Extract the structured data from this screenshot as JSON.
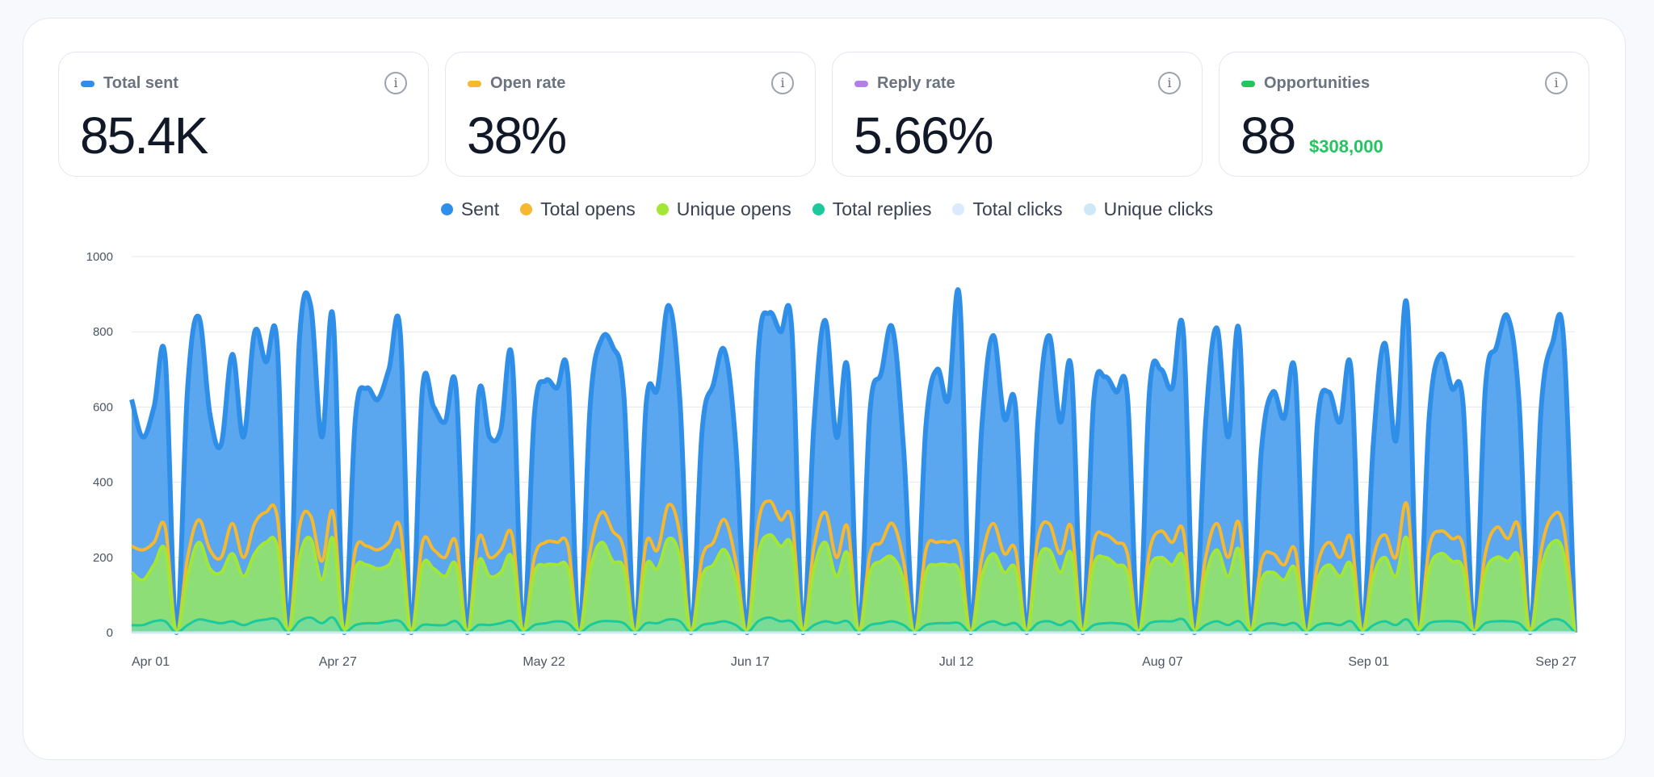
{
  "stats": [
    {
      "label": "Total sent",
      "value": "85.4K",
      "subvalue": "",
      "color": "#2f8fe8"
    },
    {
      "label": "Open rate",
      "value": "38%",
      "subvalue": "",
      "color": "#f5b82e"
    },
    {
      "label": "Reply rate",
      "value": "5.66%",
      "subvalue": "",
      "color": "#b37fe6"
    },
    {
      "label": "Opportunities",
      "value": "88",
      "subvalue": "$308,000",
      "color": "#22c55e"
    }
  ],
  "info_glyph": "i",
  "chart_data": {
    "type": "area",
    "title": "",
    "xlabel": "",
    "ylabel": "",
    "ylim": [
      0,
      1000
    ],
    "yticks": [
      "0",
      "200",
      "400",
      "600",
      "800",
      "1000"
    ],
    "x_tick_labels": [
      "Apr 01",
      "Apr 27",
      "May 22",
      "Jun 17",
      "Jul 12",
      "Aug 07",
      "Sep 01",
      "Sep 27"
    ],
    "grid": true,
    "legend_position": "top-center",
    "x": [
      "Apr 01",
      "Apr 02",
      "Apr 03",
      "Apr 04",
      "Apr 05",
      "Apr 08",
      "Apr 09",
      "Apr 10",
      "Apr 11",
      "Apr 12",
      "Apr 15",
      "Apr 16",
      "Apr 17",
      "Apr 18",
      "Apr 19",
      "Apr 22",
      "Apr 23",
      "Apr 24",
      "Apr 25",
      "Apr 26",
      "Apr 29",
      "Apr 30",
      "May 01",
      "May 02",
      "May 03",
      "May 06",
      "May 07",
      "May 08",
      "May 09",
      "May 10",
      "May 13",
      "May 14",
      "May 15",
      "May 16",
      "May 17",
      "May 20",
      "May 21",
      "May 22",
      "May 23",
      "May 24",
      "May 27",
      "May 28",
      "May 29",
      "May 30",
      "May 31",
      "Jun 03",
      "Jun 04",
      "Jun 05",
      "Jun 06",
      "Jun 07",
      "Jun 10",
      "Jun 11",
      "Jun 12",
      "Jun 13",
      "Jun 14",
      "Jun 17",
      "Jun 18",
      "Jun 19",
      "Jun 20",
      "Jun 21",
      "Jun 24",
      "Jun 25",
      "Jun 26",
      "Jun 27",
      "Jun 28",
      "Jul 01",
      "Jul 02",
      "Jul 03",
      "Jul 04",
      "Jul 05",
      "Jul 08",
      "Jul 09",
      "Jul 10",
      "Jul 11",
      "Jul 12",
      "Jul 15",
      "Jul 16",
      "Jul 17",
      "Jul 18",
      "Jul 19",
      "Jul 22",
      "Jul 23",
      "Jul 24",
      "Jul 25",
      "Jul 26",
      "Jul 29",
      "Jul 30",
      "Jul 31",
      "Aug 01",
      "Aug 02",
      "Aug 05",
      "Aug 06",
      "Aug 07",
      "Aug 08",
      "Aug 09",
      "Aug 12",
      "Aug 13",
      "Aug 14",
      "Aug 15",
      "Aug 16",
      "Aug 19",
      "Aug 20",
      "Aug 21",
      "Aug 22",
      "Aug 23",
      "Aug 26",
      "Aug 27",
      "Aug 28",
      "Aug 29",
      "Aug 30",
      "Sep 02",
      "Sep 03",
      "Sep 04",
      "Sep 05",
      "Sep 06",
      "Sep 09",
      "Sep 10",
      "Sep 11",
      "Sep 12",
      "Sep 13",
      "Sep 16",
      "Sep 17",
      "Sep 18",
      "Sep 19",
      "Sep 20",
      "Sep 23",
      "Sep 24",
      "Sep 25",
      "Sep 26",
      "Sep 27"
    ],
    "series": [
      {
        "name": "Sent",
        "color": "#2f8fe8",
        "values": [
          620,
          520,
          600,
          730,
          0,
          650,
          840,
          580,
          500,
          740,
          520,
          800,
          720,
          770,
          0,
          780,
          870,
          520,
          840,
          0,
          570,
          650,
          620,
          700,
          800,
          0,
          650,
          600,
          560,
          650,
          0,
          630,
          520,
          540,
          730,
          0,
          580,
          670,
          650,
          680,
          0,
          610,
          780,
          760,
          630,
          0,
          610,
          650,
          870,
          620,
          0,
          540,
          660,
          750,
          500,
          0,
          740,
          850,
          800,
          810,
          0,
          560,
          830,
          520,
          700,
          0,
          590,
          690,
          810,
          490,
          0,
          550,
          700,
          620,
          890,
          0,
          550,
          790,
          570,
          600,
          0,
          560,
          790,
          560,
          700,
          0,
          620,
          680,
          640,
          630,
          0,
          650,
          700,
          650,
          800,
          0,
          560,
          810,
          520,
          800,
          0,
          490,
          640,
          570,
          690,
          0,
          560,
          640,
          560,
          700,
          0,
          510,
          770,
          510,
          870,
          0,
          580,
          740,
          650,
          610,
          0,
          650,
          760,
          840,
          620,
          0,
          600,
          770,
          780,
          0
        ]
      },
      {
        "name": "Total opens",
        "color": "#f5b82e",
        "values": [
          230,
          220,
          240,
          280,
          0,
          200,
          300,
          220,
          200,
          290,
          200,
          290,
          320,
          310,
          0,
          280,
          310,
          190,
          320,
          0,
          220,
          230,
          220,
          240,
          280,
          0,
          240,
          220,
          200,
          240,
          0,
          250,
          200,
          220,
          260,
          0,
          200,
          240,
          240,
          230,
          0,
          220,
          320,
          270,
          220,
          0,
          240,
          220,
          340,
          260,
          0,
          200,
          240,
          300,
          190,
          0,
          290,
          350,
          300,
          300,
          0,
          230,
          320,
          200,
          280,
          0,
          210,
          240,
          290,
          190,
          0,
          220,
          240,
          240,
          220,
          0,
          200,
          290,
          210,
          220,
          0,
          250,
          290,
          210,
          280,
          0,
          240,
          260,
          240,
          210,
          0,
          220,
          270,
          240,
          270,
          0,
          200,
          290,
          200,
          290,
          0,
          190,
          210,
          180,
          220,
          0,
          180,
          240,
          200,
          250,
          0,
          200,
          260,
          200,
          340,
          0,
          230,
          270,
          250,
          230,
          0,
          210,
          280,
          250,
          280,
          0,
          220,
          310,
          280,
          0
        ]
      },
      {
        "name": "Unique opens",
        "color": "#a3e635",
        "values": [
          160,
          140,
          180,
          220,
          0,
          150,
          240,
          170,
          160,
          210,
          150,
          210,
          240,
          230,
          0,
          200,
          250,
          140,
          250,
          0,
          170,
          180,
          170,
          180,
          210,
          0,
          180,
          170,
          150,
          180,
          0,
          190,
          150,
          160,
          200,
          0,
          160,
          180,
          180,
          170,
          0,
          170,
          240,
          190,
          170,
          0,
          180,
          170,
          250,
          200,
          0,
          150,
          180,
          220,
          140,
          0,
          210,
          260,
          230,
          230,
          0,
          170,
          240,
          150,
          210,
          0,
          160,
          190,
          200,
          140,
          0,
          160,
          180,
          180,
          160,
          0,
          150,
          210,
          160,
          170,
          0,
          190,
          220,
          160,
          210,
          0,
          180,
          200,
          180,
          160,
          0,
          170,
          200,
          180,
          200,
          0,
          150,
          220,
          150,
          220,
          0,
          140,
          160,
          140,
          170,
          0,
          140,
          180,
          150,
          180,
          0,
          150,
          200,
          150,
          250,
          0,
          170,
          210,
          190,
          170,
          0,
          160,
          200,
          190,
          200,
          0,
          170,
          240,
          210,
          0
        ]
      },
      {
        "name": "Total replies",
        "color": "#1cc99a",
        "values": [
          20,
          20,
          30,
          30,
          0,
          20,
          35,
          30,
          25,
          30,
          20,
          30,
          35,
          35,
          0,
          30,
          40,
          25,
          40,
          0,
          20,
          25,
          25,
          30,
          30,
          0,
          20,
          20,
          20,
          30,
          0,
          20,
          20,
          25,
          30,
          0,
          20,
          25,
          30,
          25,
          0,
          20,
          30,
          30,
          25,
          0,
          25,
          25,
          35,
          30,
          0,
          20,
          25,
          30,
          20,
          0,
          30,
          40,
          30,
          30,
          0,
          20,
          30,
          25,
          30,
          0,
          20,
          25,
          30,
          20,
          0,
          20,
          25,
          25,
          25,
          0,
          20,
          30,
          20,
          25,
          0,
          25,
          30,
          20,
          30,
          0,
          20,
          25,
          25,
          20,
          0,
          25,
          30,
          30,
          35,
          0,
          20,
          30,
          20,
          30,
          0,
          20,
          25,
          20,
          25,
          0,
          20,
          25,
          20,
          30,
          0,
          20,
          30,
          20,
          35,
          0,
          25,
          30,
          30,
          25,
          0,
          25,
          30,
          30,
          25,
          0,
          20,
          35,
          30,
          0
        ]
      },
      {
        "name": "Total clicks",
        "color": "#dbeafe",
        "values": [
          0,
          0,
          0,
          0,
          0,
          0,
          0,
          0,
          0,
          0,
          0,
          0,
          0,
          0,
          0,
          0,
          0,
          0,
          0,
          0,
          0,
          0,
          0,
          0,
          0,
          0,
          0,
          0,
          0,
          0,
          0,
          0,
          0,
          0,
          0,
          0,
          0,
          0,
          0,
          0,
          0,
          0,
          0,
          0,
          0,
          0,
          0,
          0,
          0,
          0,
          0,
          0,
          0,
          0,
          0,
          0,
          0,
          0,
          0,
          0,
          0,
          0,
          0,
          0,
          0,
          0,
          0,
          0,
          0,
          0,
          0,
          0,
          0,
          0,
          0,
          0,
          0,
          0,
          0,
          0,
          0,
          0,
          0,
          0,
          0,
          0,
          0,
          0,
          0,
          0,
          0,
          0,
          0,
          0,
          0,
          0,
          0,
          0,
          0,
          0,
          0,
          0,
          0,
          0,
          0,
          0,
          0,
          0,
          0,
          0,
          0,
          0,
          0,
          0,
          0,
          0,
          0,
          0,
          0,
          0,
          0,
          0,
          0,
          0,
          0,
          0,
          0,
          0,
          0,
          0
        ]
      },
      {
        "name": "Unique clicks",
        "color": "#cfe8f7",
        "values": [
          0,
          0,
          0,
          0,
          0,
          0,
          0,
          0,
          0,
          0,
          0,
          0,
          0,
          0,
          0,
          0,
          0,
          0,
          0,
          0,
          0,
          0,
          0,
          0,
          0,
          0,
          0,
          0,
          0,
          0,
          0,
          0,
          0,
          0,
          0,
          0,
          0,
          0,
          0,
          0,
          0,
          0,
          0,
          0,
          0,
          0,
          0,
          0,
          0,
          0,
          0,
          0,
          0,
          0,
          0,
          0,
          0,
          0,
          0,
          0,
          0,
          0,
          0,
          0,
          0,
          0,
          0,
          0,
          0,
          0,
          0,
          0,
          0,
          0,
          0,
          0,
          0,
          0,
          0,
          0,
          0,
          0,
          0,
          0,
          0,
          0,
          0,
          0,
          0,
          0,
          0,
          0,
          0,
          0,
          0,
          0,
          0,
          0,
          0,
          0,
          0,
          0,
          0,
          0,
          0,
          0,
          0,
          0,
          0,
          0,
          0,
          0,
          0,
          0,
          0,
          0,
          0,
          0,
          0,
          0,
          0,
          0,
          0,
          0,
          0,
          0,
          0,
          0,
          0,
          0
        ]
      }
    ]
  }
}
